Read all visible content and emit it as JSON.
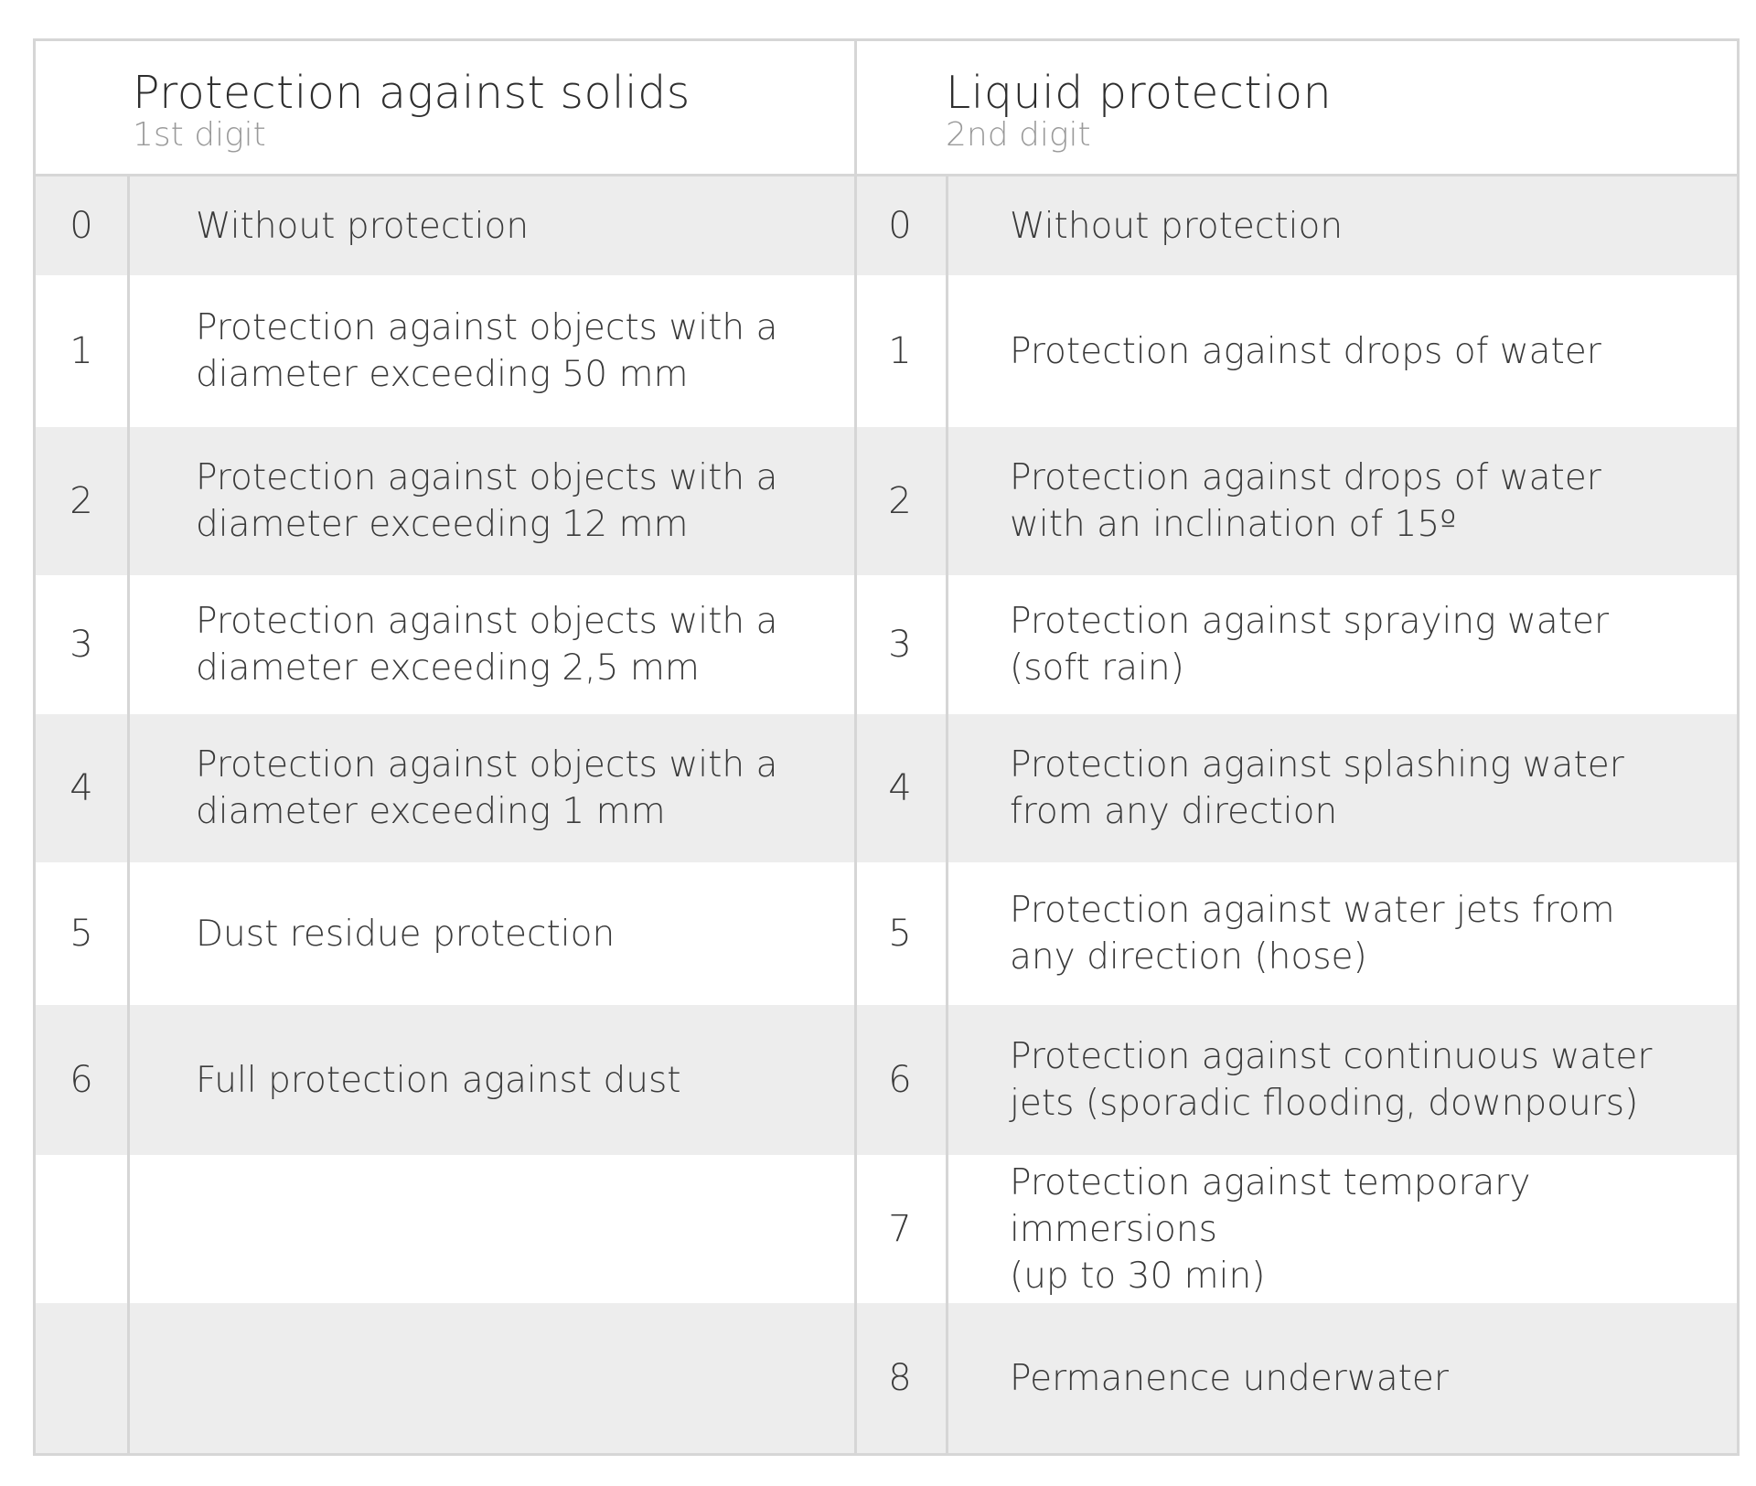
{
  "solids": {
    "title": "Protection against solids",
    "subtitle": "1st digit"
  },
  "liquids": {
    "title": "Liquid protection",
    "subtitle": "2nd digit"
  },
  "rows": [
    {
      "solid_num": "0",
      "solid_text": "Without protection",
      "liquid_num": "0",
      "liquid_text": "Without protection"
    },
    {
      "solid_num": "1",
      "solid_text": "Protection against objects with a\ndiameter exceeding 50 mm",
      "liquid_num": "1",
      "liquid_text": "Protection against drops of water"
    },
    {
      "solid_num": "2",
      "solid_text": "Protection against objects with a\ndiameter exceeding 12 mm",
      "liquid_num": "2",
      "liquid_text": "Protection against drops of water\nwith an inclination of 15º"
    },
    {
      "solid_num": "3",
      "solid_text": "Protection against objects with a\ndiameter exceeding 2,5 mm",
      "liquid_num": "3",
      "liquid_text": "Protection against spraying water\n(soft rain)"
    },
    {
      "solid_num": "4",
      "solid_text": "Protection against objects with a\ndiameter exceeding 1 mm",
      "liquid_num": "4",
      "liquid_text": "Protection against splashing water\nfrom any direction"
    },
    {
      "solid_num": "5",
      "solid_text": "Dust residue protection",
      "liquid_num": "5",
      "liquid_text": "Protection against water jets from\nany direction (hose)"
    },
    {
      "solid_num": "6",
      "solid_text": "Full protection against dust",
      "liquid_num": "6",
      "liquid_text": "Protection against continuous water\njets (sporadic flooding, downpours)"
    },
    {
      "solid_num": "",
      "solid_text": "",
      "liquid_num": "7",
      "liquid_text": "Protection against temporary immersions\n(up to 30 min)"
    },
    {
      "solid_num": "",
      "solid_text": "",
      "liquid_num": "8",
      "liquid_text": "Permanence underwater"
    }
  ]
}
